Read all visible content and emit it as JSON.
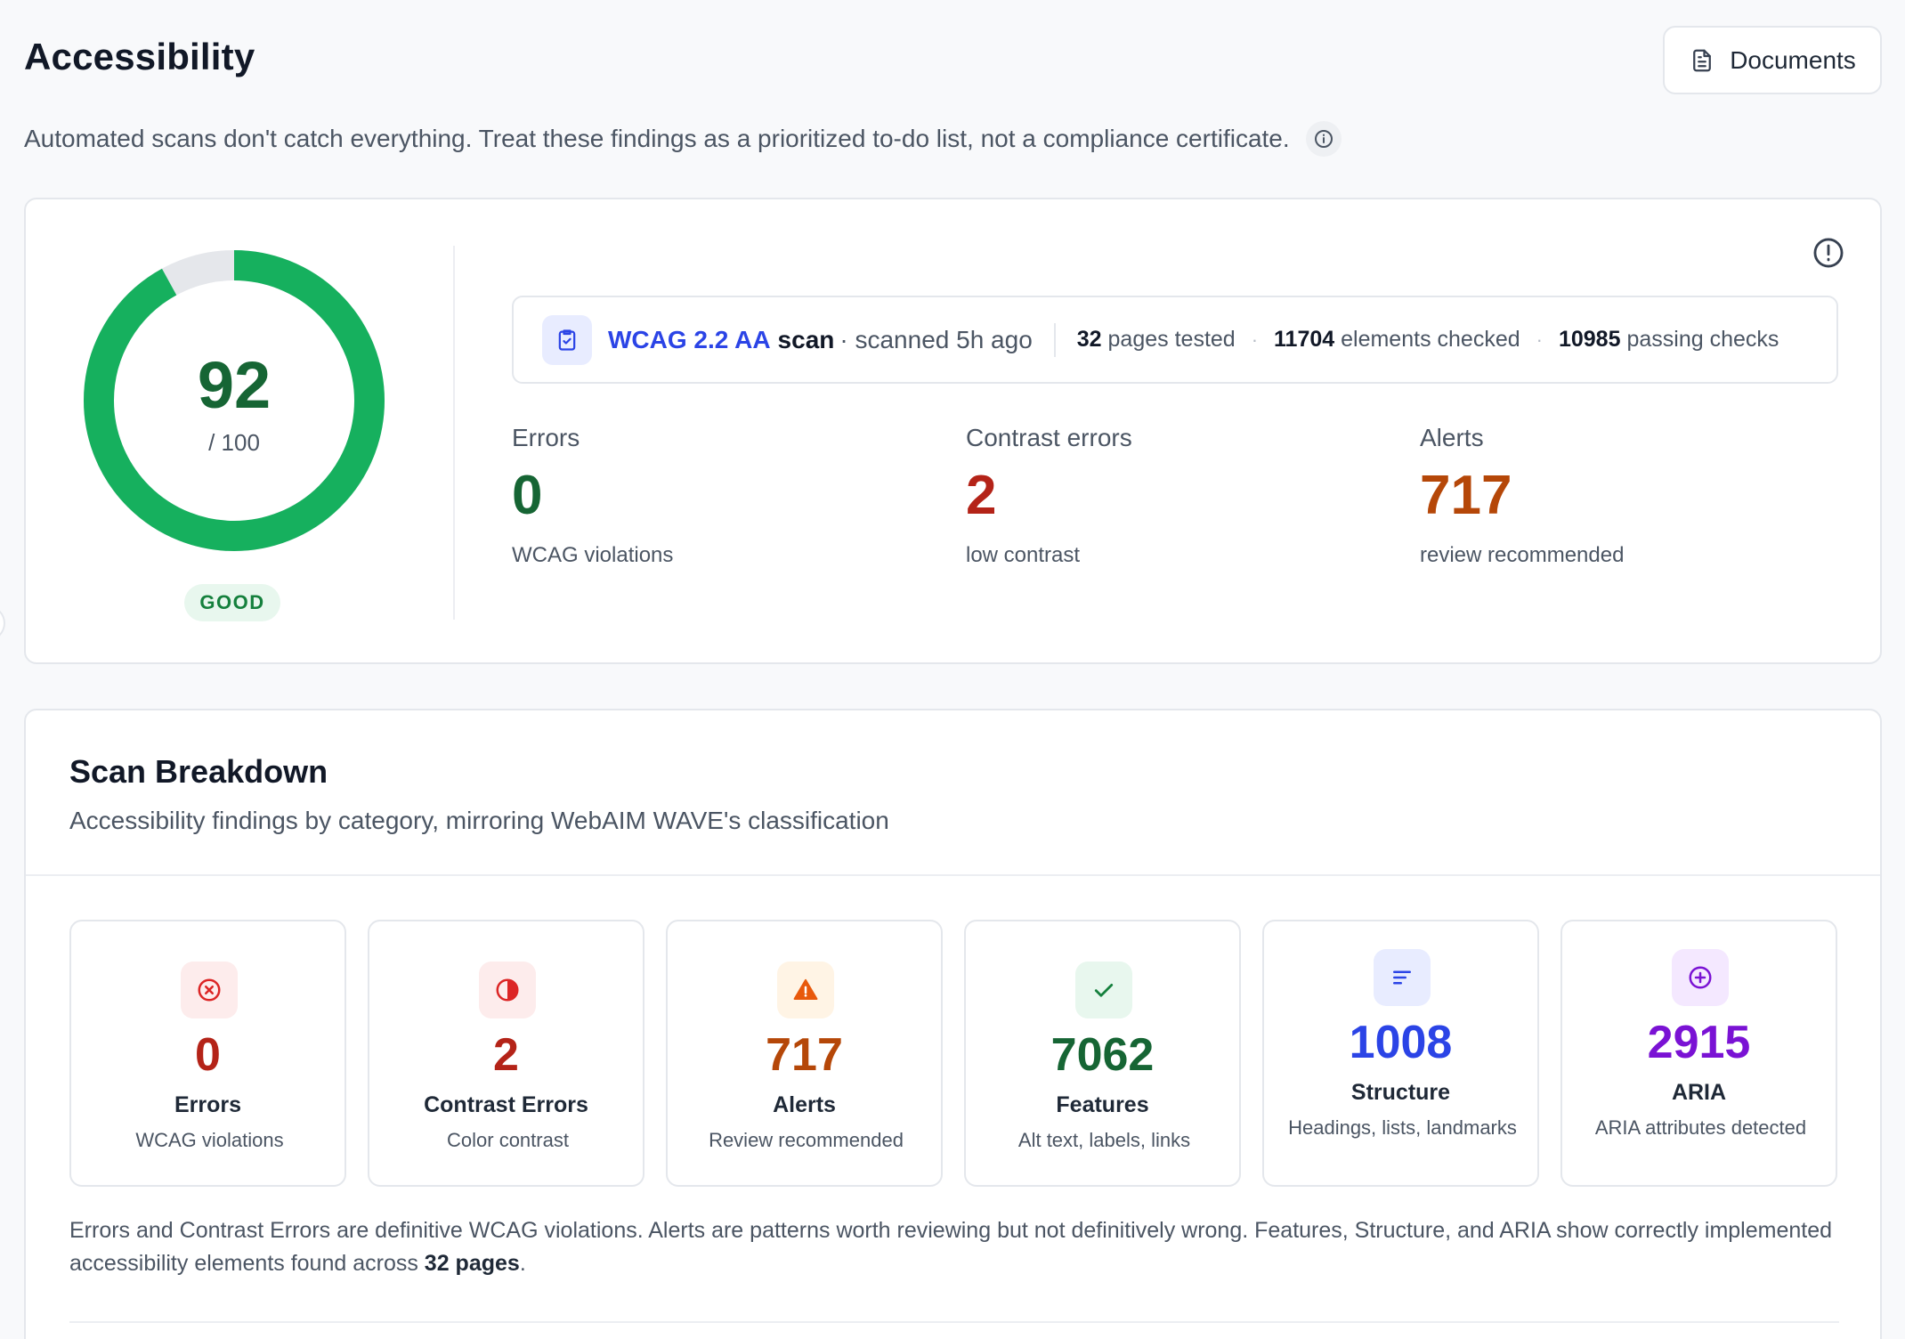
{
  "header": {
    "title": "Accessibility",
    "documents_label": "Documents",
    "subtitle": "Automated scans don't catch everything. Treat these findings as a prioritized to-do list, not a compliance certificate."
  },
  "score": {
    "value": "92",
    "out_of": "/ 100",
    "fraction": 0.92,
    "grade": "GOOD",
    "color": "#16b05e"
  },
  "scan": {
    "standard": "WCAG 2.2 AA",
    "word": "scan",
    "time": "· scanned 5h ago",
    "pages_count": "32",
    "pages_label": "pages tested",
    "elements_count": "11704",
    "elements_label": "elements checked",
    "passing_count": "10985",
    "passing_label": "passing checks",
    "dot": "·"
  },
  "metrics": [
    {
      "label": "Errors",
      "value": "0",
      "sub": "WCAG violations",
      "color": "#166534"
    },
    {
      "label": "Contrast errors",
      "value": "2",
      "sub": "low contrast",
      "color": "#b42318"
    },
    {
      "label": "Alerts",
      "value": "717",
      "sub": "review recommended",
      "color": "#b54708"
    }
  ],
  "breakdown": {
    "title": "Scan Breakdown",
    "subtitle": "Accessibility findings by category, mirroring WebAIM WAVE's classification",
    "tiles": [
      {
        "icon": "x-circle-icon",
        "value": "0",
        "label": "Errors",
        "desc": "WCAG violations",
        "color": "#b42318",
        "bg": "#fdecec"
      },
      {
        "icon": "contrast-icon",
        "value": "2",
        "label": "Contrast Errors",
        "desc": "Color contrast",
        "color": "#b42318",
        "bg": "#fdecec"
      },
      {
        "icon": "warning-icon",
        "value": "717",
        "label": "Alerts",
        "desc": "Review recommended",
        "color": "#b54708",
        "bg": "#fff4e5"
      },
      {
        "icon": "check-icon",
        "value": "7062",
        "label": "Features",
        "desc": "Alt text, labels, links",
        "color": "#166534",
        "bg": "#e8f7ee"
      },
      {
        "icon": "structure-icon",
        "value": "1008",
        "label": "Structure",
        "desc": "Headings, lists, landmarks",
        "color": "#2b44e6",
        "bg": "#e8ecff"
      },
      {
        "icon": "plus-circle-icon",
        "value": "2915",
        "label": "ARIA",
        "desc": "ARIA attributes detected",
        "color": "#7a12d4",
        "bg": "#f4e8ff"
      }
    ],
    "footnote_text": "Errors and Contrast Errors are definitive WCAG violations. Alerts are patterns worth reviewing but not definitively wrong. Features, Structure, and ARIA show correctly implemented accessibility elements found across ",
    "footnote_bold": "32 pages",
    "footnote_end": "."
  }
}
